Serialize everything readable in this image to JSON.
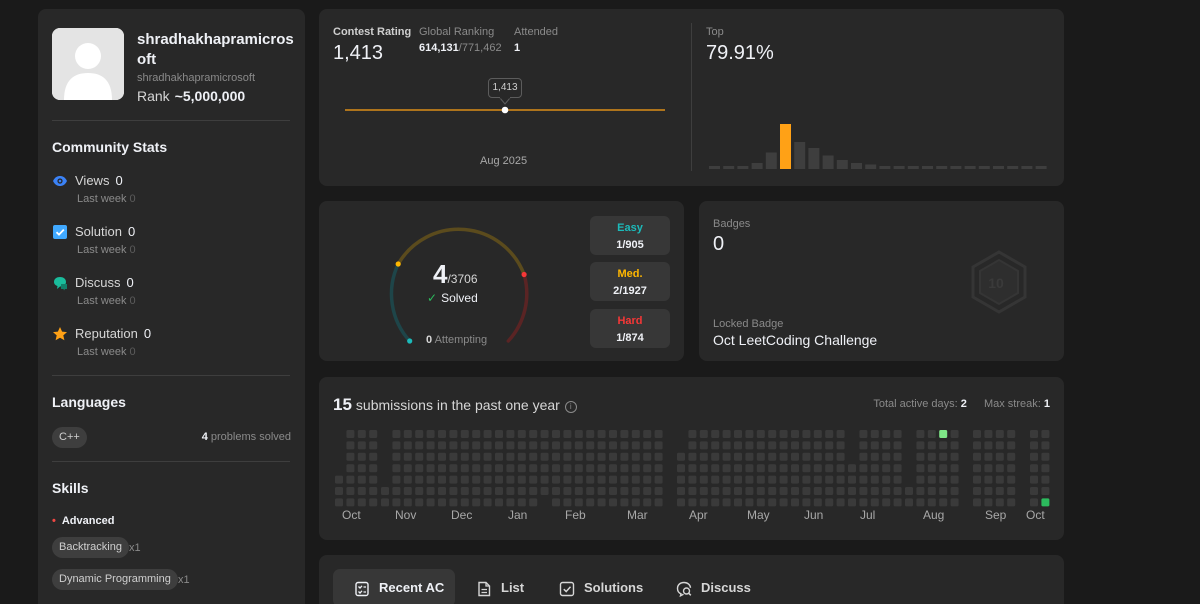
{
  "profile": {
    "username": "shradhakhapramicrosoft",
    "handle": "shradhakhapramicrosoft",
    "rank_label": "Rank",
    "rank_value": "~5,000,000"
  },
  "community": {
    "title": "Community Stats",
    "last_week_label": "Last week",
    "stats": [
      {
        "label": "Views",
        "value": "0",
        "last_week": "0",
        "icon": "eye-icon",
        "color": "#3b82f6"
      },
      {
        "label": "Solution",
        "value": "0",
        "last_week": "0",
        "icon": "solution-check-icon",
        "color": "#40a9ff"
      },
      {
        "label": "Discuss",
        "value": "0",
        "last_week": "0",
        "icon": "discuss-bubble-icon",
        "color": "#1abc9c"
      },
      {
        "label": "Reputation",
        "value": "0",
        "last_week": "0",
        "icon": "star-icon",
        "color": "#ffa116"
      }
    ]
  },
  "languages": {
    "title": "Languages",
    "items": [
      {
        "name": "C++",
        "count": "4",
        "suffix": "problems solved"
      }
    ]
  },
  "skills": {
    "title": "Skills",
    "level": "Advanced",
    "items": [
      {
        "name": "Backtracking",
        "count": "x1"
      },
      {
        "name": "Dynamic Programming",
        "count": "x1"
      }
    ]
  },
  "contest": {
    "rating_label": "Contest Rating",
    "rating": "1,413",
    "ranking_label": "Global Ranking",
    "ranking": "614,131",
    "ranking_total": "/771,462",
    "attended_label": "Attended",
    "attended": "1",
    "tooltip": "1,413",
    "date": "Aug 2025",
    "top_label": "Top",
    "top_value": "79.91%",
    "histogram": [
      2,
      2,
      2,
      4,
      11,
      30,
      18,
      14,
      9,
      6,
      4,
      3,
      2,
      2,
      2,
      2,
      2,
      2,
      2,
      2,
      2,
      2,
      2,
      2
    ],
    "histogram_highlight_index": 5
  },
  "solved": {
    "count": "4",
    "total": "/3706",
    "solved_label": "Solved",
    "attempting": "0",
    "attempting_label": "Attempting",
    "difficulties": [
      {
        "name": "Easy",
        "value": "1/905",
        "color": "#1cbaba"
      },
      {
        "name": "Med.",
        "value": "2/1927",
        "color": "#ffb700"
      },
      {
        "name": "Hard",
        "value": "1/874",
        "color": "#f63737"
      }
    ]
  },
  "badges": {
    "label": "Badges",
    "count": "0",
    "locked_label": "Locked Badge",
    "locked_name": "Oct LeetCoding Challenge",
    "locked_icon_text": "10"
  },
  "submissions": {
    "count": "15",
    "text": "submissions in the past one year",
    "active_days_label": "Total active days:",
    "active_days": "2",
    "max_streak_label": "Max streak:",
    "max_streak": "1",
    "months": [
      "Oct",
      "Nov",
      "Dec",
      "Jan",
      "Feb",
      "Mar",
      "Apr",
      "May",
      "Jun",
      "Jul",
      "Aug",
      "Sep",
      "Oct"
    ]
  },
  "tabs": [
    {
      "label": "Recent AC",
      "icon": "recent-ac-icon",
      "active": true
    },
    {
      "label": "List",
      "icon": "list-icon",
      "active": false
    },
    {
      "label": "Solutions",
      "icon": "solutions-icon",
      "active": false
    },
    {
      "label": "Discuss",
      "icon": "discuss-icon",
      "active": false
    }
  ]
}
